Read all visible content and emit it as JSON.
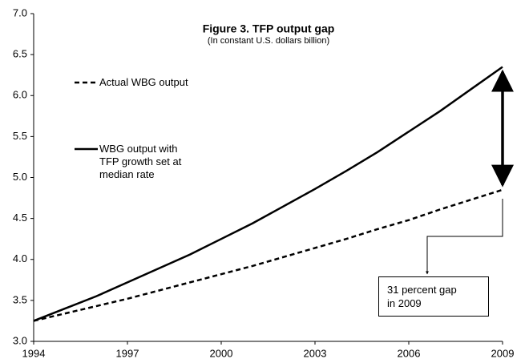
{
  "chart_data": {
    "type": "line",
    "title": "Figure 3. TFP output gap",
    "subtitle": "(In constant U.S. dollars billion)",
    "x": [
      1994,
      1995,
      1996,
      1997,
      1998,
      1999,
      2000,
      2001,
      2002,
      2003,
      2004,
      2005,
      2006,
      2007,
      2008,
      2009
    ],
    "series": [
      {
        "name": "Actual WBG output",
        "color": "#000000",
        "dash": true,
        "values": [
          3.25,
          3.34,
          3.43,
          3.52,
          3.62,
          3.72,
          3.82,
          3.92,
          4.03,
          4.14,
          4.25,
          4.37,
          4.48,
          4.61,
          4.73,
          4.85
        ]
      },
      {
        "name": "WBG output with TFP growth set at median rate",
        "color": "#000000",
        "dash": false,
        "values": [
          3.25,
          3.4,
          3.55,
          3.72,
          3.89,
          4.06,
          4.25,
          4.44,
          4.65,
          4.86,
          5.08,
          5.31,
          5.56,
          5.81,
          6.08,
          6.35
        ]
      }
    ],
    "annotation": [
      "31 percent gap",
      "in 2009"
    ],
    "xlim": [
      1994,
      2009
    ],
    "xticks": [
      1994,
      1997,
      2000,
      2003,
      2006,
      2009
    ],
    "ylim": [
      3,
      7
    ],
    "yticks": [
      {
        "value": 3,
        "label": "3.0"
      },
      3.5,
      {
        "value": 4,
        "label": "4.0"
      },
      4.5,
      {
        "value": 5,
        "label": "5.0"
      },
      5.5,
      {
        "value": 6,
        "label": "6.0"
      },
      6.5,
      {
        "value": 7,
        "label": "7.0"
      }
    ],
    "grid": false
  }
}
